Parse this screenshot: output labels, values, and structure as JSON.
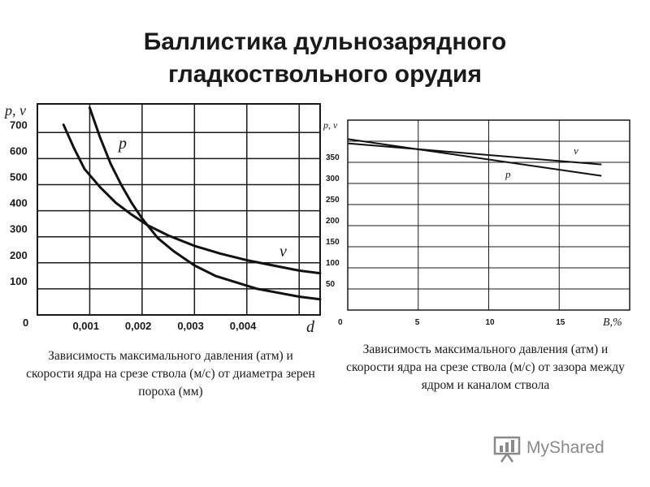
{
  "title_line1": "Баллистика дульнозарядного",
  "title_line2": "гладкоствольного орудия",
  "chart_data": [
    {
      "type": "line",
      "ylabel": "p, v",
      "xlabel": "d",
      "x_tick_labels": [
        "0,001",
        "0,002",
        "0,003",
        "0,004"
      ],
      "x_ticks": [
        0.001,
        0.002,
        0.003,
        0.004
      ],
      "y_tick_labels": [
        "0",
        "100",
        "200",
        "300",
        "400",
        "500",
        "600",
        "700"
      ],
      "y_ticks": [
        0,
        100,
        200,
        300,
        400,
        500,
        600,
        700
      ],
      "xlim": [
        0,
        0.0054
      ],
      "ylim": [
        0,
        810
      ],
      "grid": true,
      "series": [
        {
          "name": "p",
          "x": [
            0.001,
            0.0012,
            0.0014,
            0.0016,
            0.0018,
            0.002,
            0.0023,
            0.0026,
            0.003,
            0.0034,
            0.0038,
            0.0042,
            0.0046,
            0.005,
            0.0054
          ],
          "y": [
            795,
            680,
            580,
            500,
            430,
            370,
            295,
            245,
            190,
            150,
            125,
            100,
            85,
            70,
            60
          ]
        },
        {
          "name": "v",
          "x": [
            0.0005,
            0.0007,
            0.0009,
            0.0012,
            0.0015,
            0.0018,
            0.0021,
            0.0025,
            0.003,
            0.0035,
            0.004,
            0.0045,
            0.005,
            0.0054
          ],
          "y": [
            730,
            640,
            560,
            490,
            430,
            385,
            345,
            305,
            265,
            235,
            210,
            190,
            170,
            160
          ]
        }
      ]
    },
    {
      "type": "line",
      "ylabel": "p, v",
      "xlabel": "B,%",
      "x_tick_labels": [
        "0",
        "5",
        "10",
        "15"
      ],
      "x_ticks": [
        0,
        5,
        10,
        15
      ],
      "y_tick_labels": [
        "50",
        "100",
        "150",
        "200",
        "250",
        "300",
        "350"
      ],
      "y_ticks": [
        50,
        100,
        150,
        200,
        250,
        300,
        350
      ],
      "xlim": [
        0,
        20
      ],
      "ylim": [
        0,
        450
      ],
      "grid": true,
      "series": [
        {
          "name": "v",
          "x": [
            0,
            18
          ],
          "y": [
            395,
            345
          ]
        },
        {
          "name": "p",
          "x": [
            0,
            18
          ],
          "y": [
            405,
            318
          ]
        }
      ]
    }
  ],
  "caption_left": "Зависимость максимального давления (атм) и скорости ядра на срезе ствола (м/с) от диаметра зерен пороха (мм)",
  "caption_right": "Зависимость максимального давления (атм) и скорости ядра на срезе ствола (м/с) от зазора между ядром и каналом ствола",
  "watermark_text": "MyShared"
}
